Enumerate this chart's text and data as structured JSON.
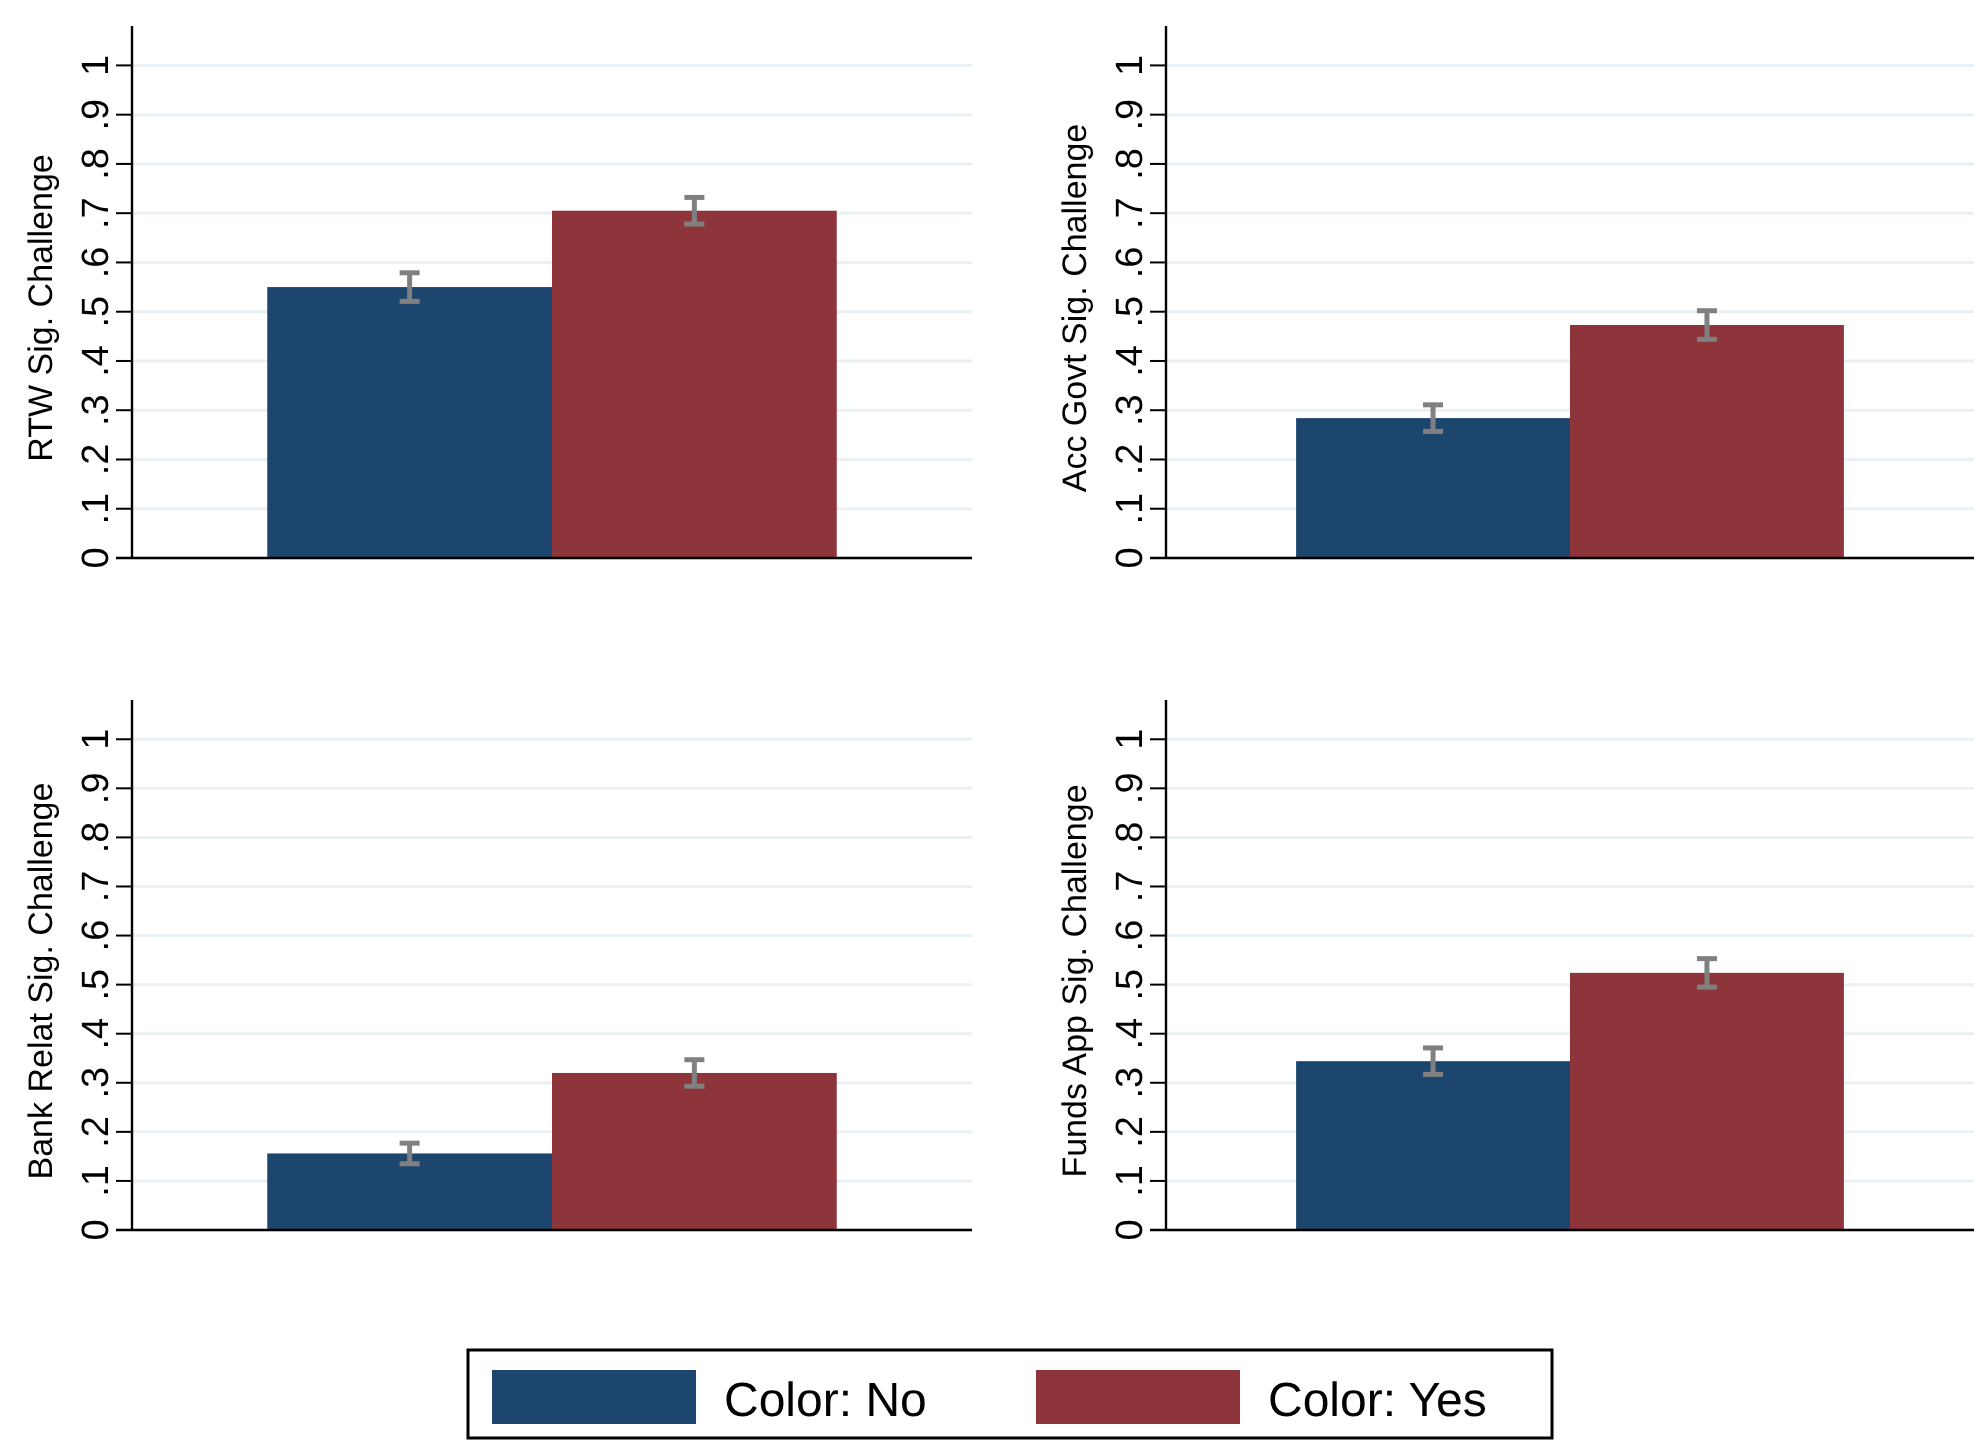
{
  "chart_data": [
    {
      "type": "bar",
      "ylabel": "RTW Sig. Challenge",
      "categories": [
        null
      ],
      "ylim": [
        0,
        1.08
      ],
      "yticks": [
        {
          "value": 0,
          "label": "0"
        },
        {
          "value": 0.1,
          "label": ".1"
        },
        {
          "value": 0.2,
          "label": ".2"
        },
        {
          "value": 0.3,
          "label": ".3"
        },
        {
          "value": 0.4,
          "label": ".4"
        },
        {
          "value": 0.5,
          "label": ".5"
        },
        {
          "value": 0.6,
          "label": ".6"
        },
        {
          "value": 0.7,
          "label": ".7"
        },
        {
          "value": 0.8,
          "label": ".8"
        },
        {
          "value": 0.9,
          "label": ".9"
        },
        {
          "value": 1,
          "label": "1"
        }
      ],
      "grid": "y",
      "legend": false,
      "series": [
        {
          "color": "#1c466d",
          "values": [
            0.55
          ],
          "errors": [
            0.029
          ]
        },
        {
          "color": "#8e353c",
          "values": [
            0.705
          ],
          "errors": [
            0.027
          ]
        }
      ]
    },
    {
      "type": "bar",
      "ylabel": "Acc Govt Sig. Challenge",
      "categories": [
        null
      ],
      "ylim": [
        0,
        1.08
      ],
      "yticks": [
        {
          "value": 0,
          "label": "0"
        },
        {
          "value": 0.1,
          "label": ".1"
        },
        {
          "value": 0.2,
          "label": ".2"
        },
        {
          "value": 0.3,
          "label": ".3"
        },
        {
          "value": 0.4,
          "label": ".4"
        },
        {
          "value": 0.5,
          "label": ".5"
        },
        {
          "value": 0.6,
          "label": ".6"
        },
        {
          "value": 0.7,
          "label": ".7"
        },
        {
          "value": 0.8,
          "label": ".8"
        },
        {
          "value": 0.9,
          "label": ".9"
        },
        {
          "value": 1,
          "label": "1"
        }
      ],
      "grid": "y",
      "legend": false,
      "series": [
        {
          "color": "#1c466d",
          "values": [
            0.284
          ],
          "errors": [
            0.027
          ]
        },
        {
          "color": "#8e353c",
          "values": [
            0.473
          ],
          "errors": [
            0.029
          ]
        }
      ]
    },
    {
      "type": "bar",
      "ylabel": "Bank Relat Sig. Challenge",
      "categories": [
        null
      ],
      "ylim": [
        0,
        1.08
      ],
      "yticks": [
        {
          "value": 0,
          "label": "0"
        },
        {
          "value": 0.1,
          "label": ".1"
        },
        {
          "value": 0.2,
          "label": ".2"
        },
        {
          "value": 0.3,
          "label": ".3"
        },
        {
          "value": 0.4,
          "label": ".4"
        },
        {
          "value": 0.5,
          "label": ".5"
        },
        {
          "value": 0.6,
          "label": ".6"
        },
        {
          "value": 0.7,
          "label": ".7"
        },
        {
          "value": 0.8,
          "label": ".8"
        },
        {
          "value": 0.9,
          "label": ".9"
        },
        {
          "value": 1,
          "label": "1"
        }
      ],
      "grid": "y",
      "legend": false,
      "series": [
        {
          "color": "#1c466d",
          "values": [
            0.156
          ],
          "errors": [
            0.021
          ]
        },
        {
          "color": "#8e353c",
          "values": [
            0.32
          ],
          "errors": [
            0.027
          ]
        }
      ]
    },
    {
      "type": "bar",
      "ylabel": "Funds App Sig. Challenge",
      "categories": [
        null
      ],
      "ylim": [
        0,
        1.08
      ],
      "yticks": [
        {
          "value": 0,
          "label": "0"
        },
        {
          "value": 0.1,
          "label": ".1"
        },
        {
          "value": 0.2,
          "label": ".2"
        },
        {
          "value": 0.3,
          "label": ".3"
        },
        {
          "value": 0.4,
          "label": ".4"
        },
        {
          "value": 0.5,
          "label": ".5"
        },
        {
          "value": 0.6,
          "label": ".6"
        },
        {
          "value": 0.7,
          "label": ".7"
        },
        {
          "value": 0.8,
          "label": ".8"
        },
        {
          "value": 0.9,
          "label": ".9"
        },
        {
          "value": 1,
          "label": "1"
        }
      ],
      "grid": "y",
      "legend": "bottom",
      "series": [
        {
          "name": "Color: No",
          "color": "#1c466d",
          "values": [
            0.344
          ],
          "errors": [
            0.027
          ]
        },
        {
          "name": "Color: Yes",
          "color": "#8e353c",
          "values": [
            0.524
          ],
          "errors": [
            0.029
          ]
        }
      ]
    }
  ]
}
